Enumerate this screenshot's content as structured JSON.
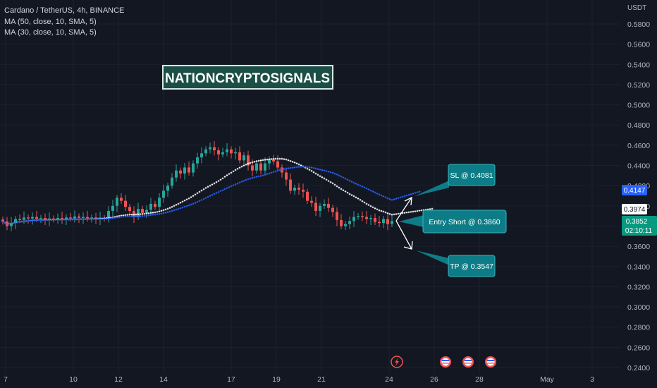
{
  "legend": {
    "symbol": "Cardano / TetherUS, 4h, BINANCE",
    "ma50": "MA (50, close, 10, SMA, 5)",
    "ma30": "MA (30, close, 10, SMA, 5)"
  },
  "axis": {
    "currency": "USDT",
    "y_ticks": [
      "0.5800",
      "0.5600",
      "0.5400",
      "0.5200",
      "0.5000",
      "0.4800",
      "0.4600",
      "0.4400",
      "0.4200",
      "0.4000",
      "0.3800",
      "0.3600",
      "0.3400",
      "0.3200",
      "0.3000",
      "0.2800",
      "0.2600",
      "0.2400"
    ],
    "x_ticks": [
      "7",
      "10",
      "12",
      "14",
      "17",
      "19",
      "21",
      "24",
      "26",
      "28",
      "May",
      "3"
    ]
  },
  "price_badges": {
    "blue": "0.4147",
    "white": "0.3974",
    "green_price": "0.3852",
    "green_timer": "02:10:11"
  },
  "watermark": "NATIONCRYPTOSIGNALS",
  "annotations": {
    "sl": "SL @ 0.4081",
    "entry": "Entry Short @ 0.3860",
    "tp": "TP @ 0.3547"
  },
  "colors": {
    "background": "#131722",
    "up": "#26a69a",
    "down": "#ef5350",
    "ma_white": "#ffffff",
    "ma_blue": "#2962ff",
    "callout": "#0e7c86"
  },
  "chart_data": {
    "type": "candlestick",
    "timeframe": "4h",
    "ylim": [
      0.24,
      0.59
    ],
    "closes": [
      0.3845,
      0.38,
      0.383,
      0.387,
      0.386,
      0.3885,
      0.3875,
      0.389,
      0.387,
      0.388,
      0.386,
      0.3875,
      0.3865,
      0.388,
      0.387,
      0.3885,
      0.3875,
      0.3895,
      0.388,
      0.389,
      0.3875,
      0.3885,
      0.387,
      0.388,
      0.3875,
      0.395,
      0.4,
      0.408,
      0.405,
      0.399,
      0.395,
      0.389,
      0.397,
      0.393,
      0.396,
      0.402,
      0.399,
      0.408,
      0.415,
      0.42,
      0.428,
      0.435,
      0.432,
      0.438,
      0.433,
      0.442,
      0.448,
      0.452,
      0.456,
      0.458,
      0.455,
      0.451,
      0.453,
      0.456,
      0.452,
      0.453,
      0.445,
      0.45,
      0.44,
      0.435,
      0.442,
      0.435,
      0.442,
      0.446,
      0.444,
      0.438,
      0.433,
      0.426,
      0.415,
      0.418,
      0.416,
      0.414,
      0.405,
      0.403,
      0.395,
      0.4,
      0.402,
      0.398,
      0.394,
      0.386,
      0.38,
      0.382,
      0.385,
      0.389,
      0.39,
      0.389,
      0.387,
      0.388,
      0.384,
      0.383,
      0.387,
      0.382,
      0.385
    ]
  }
}
